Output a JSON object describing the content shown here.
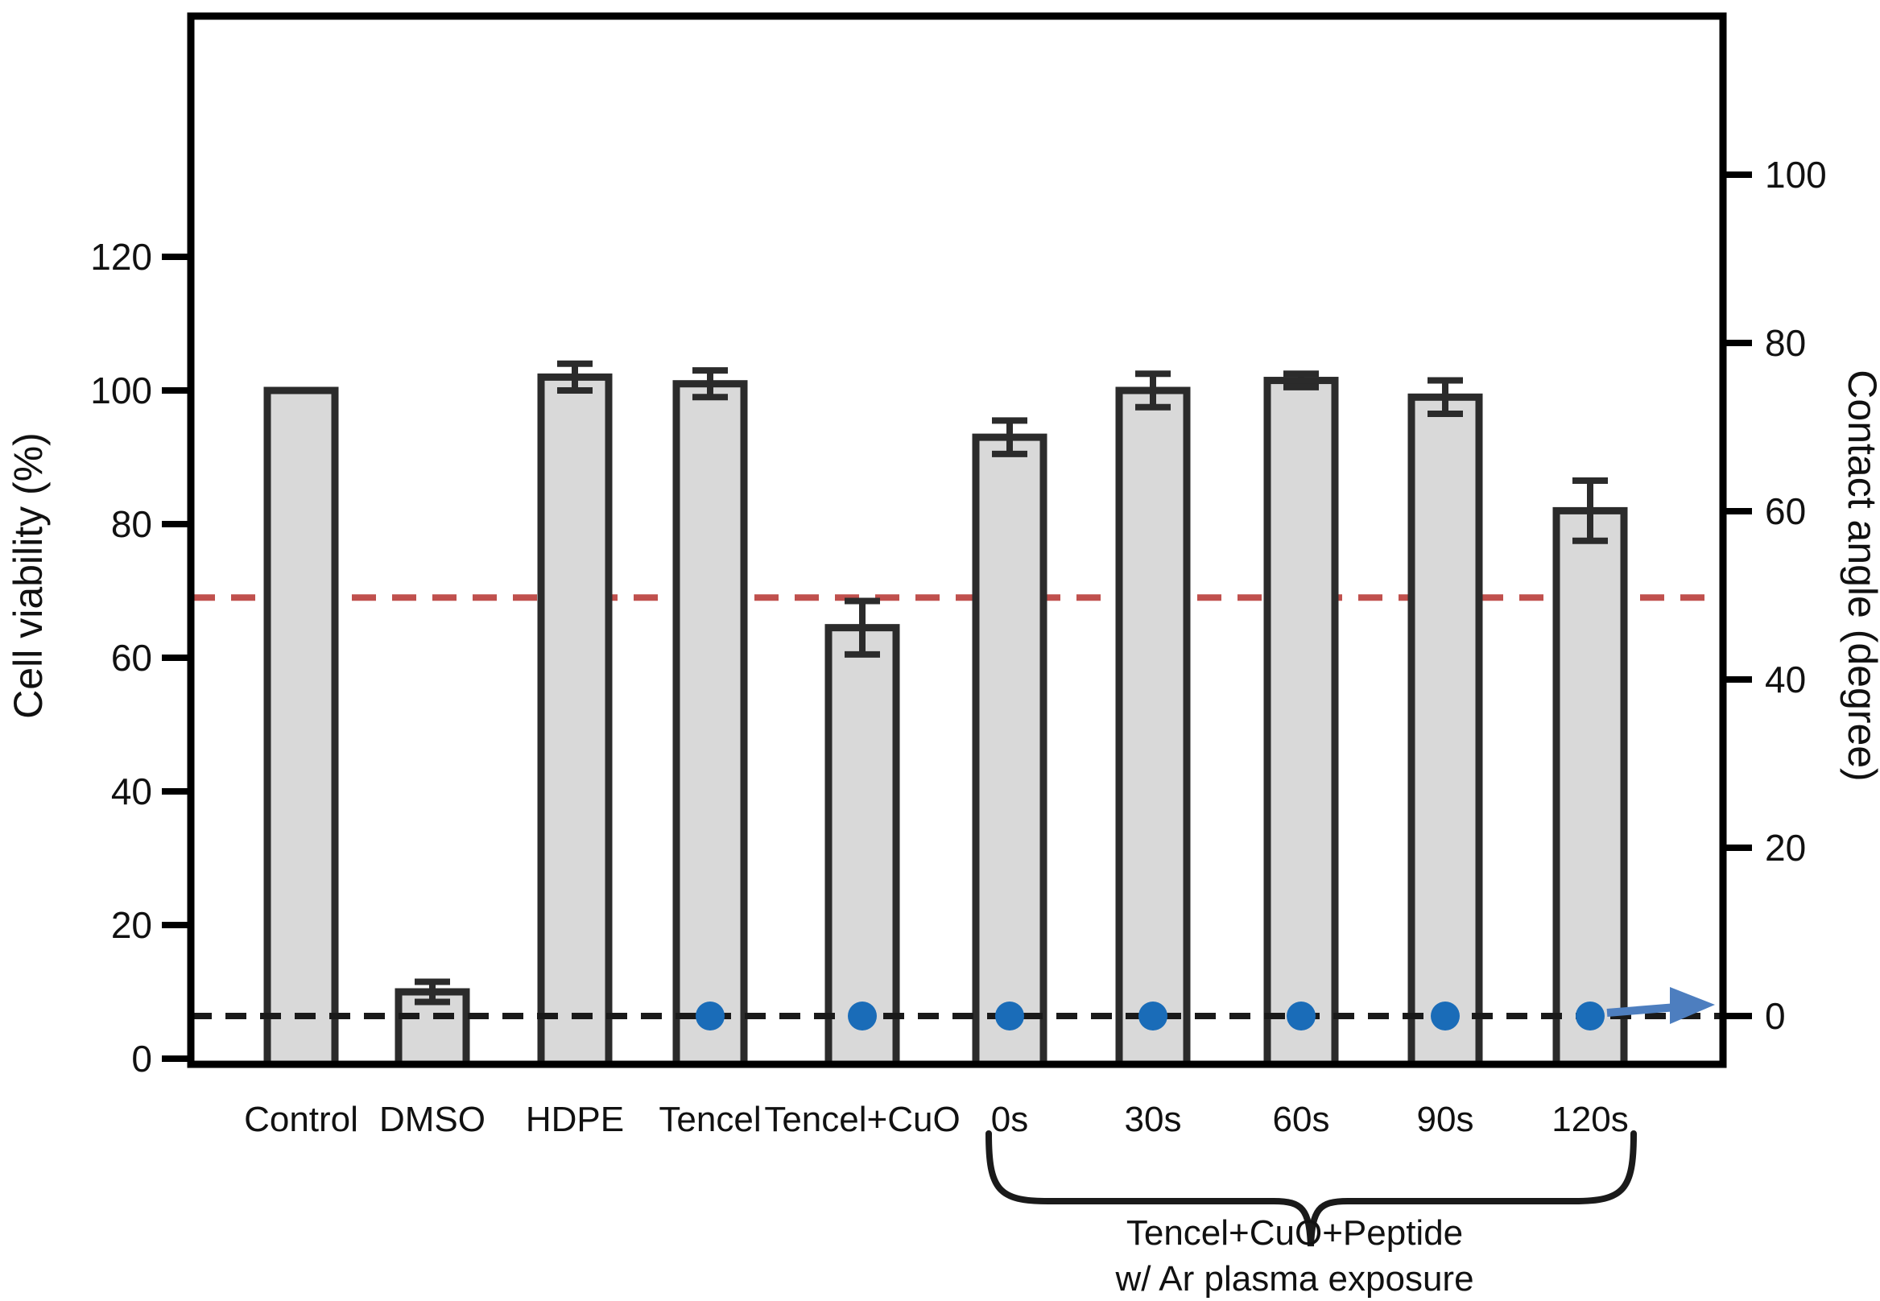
{
  "chart_data": {
    "type": "bar",
    "categories": [
      "Control",
      "DMSO",
      "HDPE",
      "Tencel",
      "Tencel+CuO",
      "0s",
      "30s",
      "60s",
      "90s",
      "120s"
    ],
    "series": [
      {
        "name": "Cell viability",
        "axis": "left",
        "type": "bar",
        "values": [
          100,
          10,
          102,
          101,
          64.5,
          93,
          100,
          101.5,
          99,
          82
        ],
        "errors": [
          0,
          1.5,
          2,
          2,
          4,
          2.5,
          2.5,
          1,
          2.5,
          4.5
        ]
      },
      {
        "name": "Contact angle",
        "axis": "right",
        "type": "scatter",
        "marker": "circle",
        "values": [
          null,
          null,
          null,
          0,
          0,
          0,
          0,
          0,
          0,
          0
        ]
      }
    ],
    "left_axis": {
      "label": "Cell viability (%)",
      "ticks": [
        0,
        20,
        40,
        60,
        80,
        100,
        120
      ]
    },
    "right_axis": {
      "label": "Contact angle (degree)",
      "ticks": [
        0,
        20,
        40,
        60,
        80,
        100
      ]
    },
    "reference_lines": [
      {
        "name": "viability-threshold-line",
        "axis": "left",
        "value": 69,
        "color": "#c0504d",
        "style": "dashed",
        "in_front_of_bars": false
      },
      {
        "name": "zero-contact-angle-line",
        "axis": "right",
        "value": 0,
        "color": "#1a1a1a",
        "style": "dashed",
        "in_front_of_bars": true
      }
    ],
    "bracket": {
      "from_category": "0s",
      "to_category": "120s",
      "label_line1": "Tencel+CuO+Peptide",
      "label_line2": "w/ Ar plasma exposure"
    },
    "arrow_annotation": {
      "description": "arrow from 120s contact-angle dot toward right-axis zero",
      "color": "#4d7ebf"
    },
    "style": {
      "bar_fill": "#d9d9d9",
      "bar_stroke": "#2b2b2b",
      "dot_color": "#1a6cb8",
      "frame_color": "#000000"
    }
  }
}
